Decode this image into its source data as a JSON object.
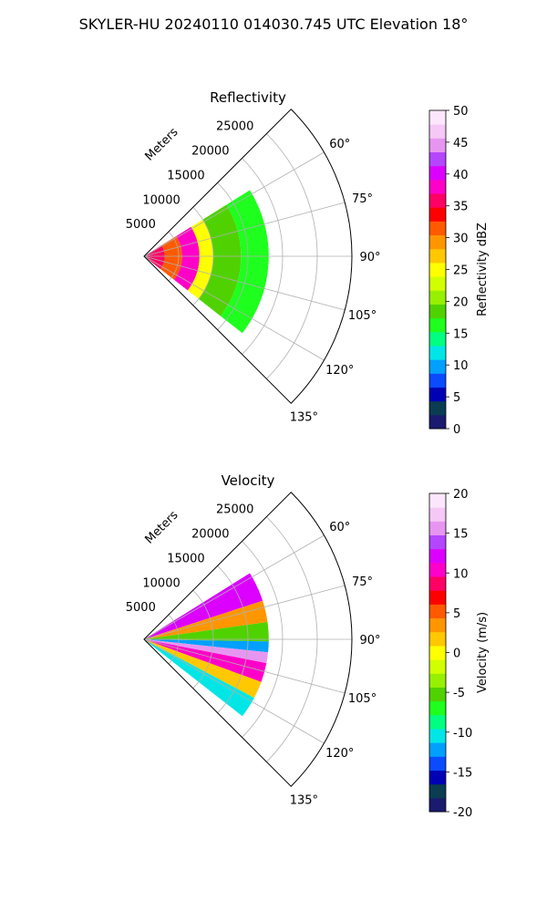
{
  "figure": {
    "suptitle": "SKYLER-HU  20240110  014030.745 UTC Elevation 18°"
  },
  "chart_data": [
    {
      "type": "heatmap",
      "title": "Reflectivity",
      "projection": "polar sector",
      "range_unit_label": "Meters",
      "radial_ticks": [
        "5000",
        "10000",
        "15000",
        "20000",
        "25000"
      ],
      "radial_tick_values": [
        5000,
        10000,
        15000,
        20000,
        25000
      ],
      "radial_limit": 30000,
      "azimuth_range_deg": [
        45,
        135
      ],
      "angle_ticks": [
        "60°",
        "75°",
        "90°",
        "105°",
        "120°",
        "135°"
      ],
      "angle_tick_values": [
        60,
        75,
        90,
        105,
        120,
        135
      ],
      "grid": true,
      "colorbar": {
        "label": "Reflectivity dBZ",
        "range": [
          0,
          50
        ],
        "ticks": [
          "0",
          "5",
          "10",
          "15",
          "20",
          "25",
          "30",
          "35",
          "40",
          "45",
          "50"
        ],
        "tick_values": [
          0,
          5,
          10,
          15,
          20,
          25,
          30,
          35,
          40,
          45,
          50
        ],
        "colors": [
          "#1a1a6e",
          "#0a3c52",
          "#0000b4",
          "#0a4bff",
          "#00a0ff",
          "#00e6e6",
          "#00ff80",
          "#1eff1e",
          "#50d200",
          "#96f000",
          "#d2ff00",
          "#ffff00",
          "#ffc800",
          "#ff9600",
          "#ff5a00",
          "#ff0000",
          "#ff0064",
          "#ff00c8",
          "#dc00ff",
          "#b446ff",
          "#e696f0",
          "#f5c8f5",
          "#fbe6fb"
        ]
      },
      "data_extent_m": 18000,
      "data_azimuth_extent_deg": [
        58,
        128
      ],
      "bands": [
        {
          "r": [
            0,
            3000
          ],
          "value": 36
        },
        {
          "r": [
            3000,
            5500
          ],
          "value": 32
        },
        {
          "r": [
            5500,
            8000
          ],
          "value": 37
        },
        {
          "r": [
            8000,
            10000
          ],
          "value": 26
        },
        {
          "r": [
            10000,
            14000
          ],
          "value": 19
        },
        {
          "r": [
            14000,
            18000
          ],
          "value": 17
        }
      ]
    },
    {
      "type": "heatmap",
      "title": "Velocity",
      "projection": "polar sector",
      "range_unit_label": "Meters",
      "radial_ticks": [
        "5000",
        "10000",
        "15000",
        "20000",
        "25000"
      ],
      "radial_tick_values": [
        5000,
        10000,
        15000,
        20000,
        25000
      ],
      "radial_limit": 30000,
      "azimuth_range_deg": [
        45,
        135
      ],
      "angle_ticks": [
        "60°",
        "75°",
        "90°",
        "105°",
        "120°",
        "135°"
      ],
      "angle_tick_values": [
        60,
        75,
        90,
        105,
        120,
        135
      ],
      "grid": true,
      "colorbar": {
        "label": "Velocity (m/s)",
        "range": [
          -20,
          20
        ],
        "ticks": [
          "-20",
          "-15",
          "-10",
          "-5",
          "0",
          "5",
          "10",
          "15",
          "20"
        ],
        "tick_values": [
          -20,
          -15,
          -10,
          -5,
          0,
          5,
          10,
          15,
          20
        ],
        "colors": [
          "#1a1a6e",
          "#0a3c52",
          "#0000b4",
          "#0a4bff",
          "#00a0ff",
          "#00e6e6",
          "#00ff80",
          "#1eff1e",
          "#50d200",
          "#96f000",
          "#d2ff00",
          "#ffff00",
          "#ffc800",
          "#ff9600",
          "#ff5a00",
          "#ff0000",
          "#ff0064",
          "#ff00c8",
          "#dc00ff",
          "#b446ff",
          "#e696f0",
          "#f5c8f5",
          "#fbe6fb"
        ]
      },
      "data_extent_m": 18000,
      "data_azimuth_extent_deg": [
        58,
        128
      ],
      "sectors": [
        {
          "az": [
            58,
            72
          ],
          "value": 12
        },
        {
          "az": [
            72,
            82
          ],
          "value": 4
        },
        {
          "az": [
            82,
            91
          ],
          "value": -6
        },
        {
          "az": [
            91,
            96
          ],
          "value": -12
        },
        {
          "az": [
            96,
            101
          ],
          "value": 16
        },
        {
          "az": [
            101,
            110
          ],
          "value": 10
        },
        {
          "az": [
            110,
            118
          ],
          "value": 1
        },
        {
          "az": [
            118,
            128
          ],
          "value": -10
        }
      ]
    }
  ]
}
